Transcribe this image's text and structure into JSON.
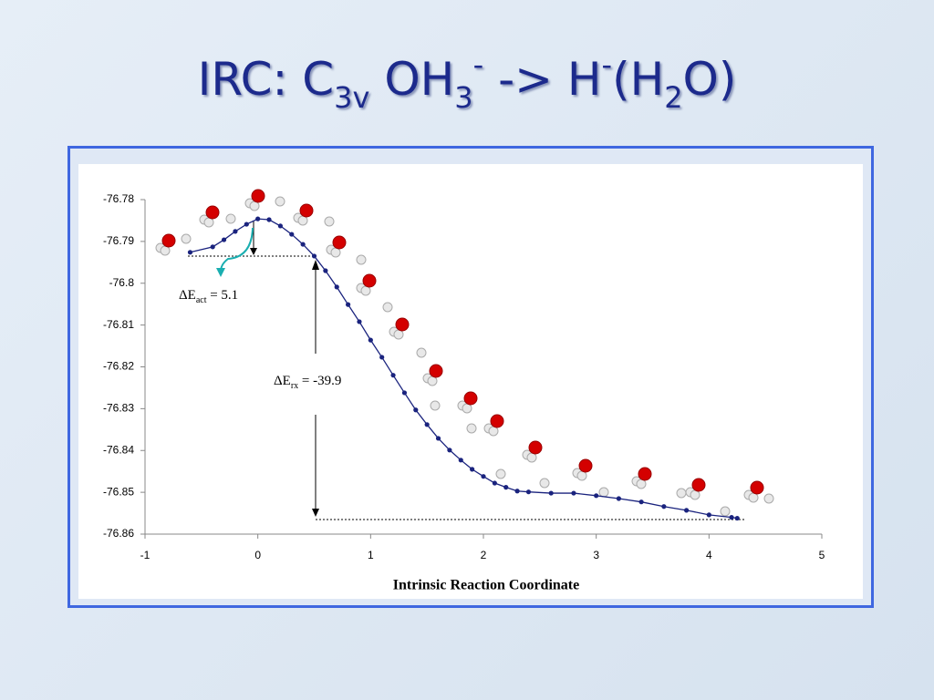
{
  "title_parts": [
    "IRC: C",
    "3v",
    " OH",
    "3",
    "-",
    " -> H",
    "-",
    "(H",
    "2",
    "O)"
  ],
  "chart_data": {
    "type": "line",
    "x_label": "Intrinsic Reaction Coordinate",
    "annotations": [
      [
        "ΔE",
        "act",
        " = 5.1"
      ],
      [
        "ΔE",
        "rx",
        " = -39.9"
      ]
    ],
    "x": [
      -0.6,
      -0.4,
      -0.3,
      -0.2,
      -0.1,
      0,
      0.1,
      0.2,
      0.3,
      0.4,
      0.5,
      0.6,
      0.7,
      0.8,
      0.9,
      1.0,
      1.1,
      1.2,
      1.3,
      1.4,
      1.5,
      1.6,
      1.7,
      1.8,
      1.9,
      2.0,
      2.1,
      2.2,
      2.3,
      2.4,
      2.6,
      2.8,
      3.0,
      3.2,
      3.4,
      3.6,
      3.8,
      4.0,
      4.2,
      4.25
    ],
    "values": [
      -76.7926,
      -76.7913,
      -76.7896,
      -76.7876,
      -76.7859,
      -76.7846,
      -76.7848,
      -76.7863,
      -76.7883,
      -76.7907,
      -76.7935,
      -76.797,
      -76.8009,
      -76.8051,
      -76.8092,
      -76.8136,
      -76.8177,
      -76.822,
      -76.8262,
      -76.8303,
      -76.8338,
      -76.8371,
      -76.8399,
      -76.8423,
      -76.8445,
      -76.8462,
      -76.8478,
      -76.8488,
      -76.8497,
      -76.8499,
      -76.8502,
      -76.8502,
      -76.8508,
      -76.8515,
      -76.8523,
      -76.8534,
      -76.8543,
      -76.8554,
      -76.856,
      -76.8562
    ],
    "color": "#1a237e",
    "xlim": [
      -1,
      5
    ],
    "xticks": [
      -1,
      0,
      1,
      2,
      3,
      4,
      5
    ],
    "ylim": [
      -76.86,
      -76.78
    ],
    "yticks": [
      -76.86,
      -76.85,
      -76.84,
      -76.83,
      -76.82,
      -76.81,
      -76.8,
      -76.79,
      -76.78
    ]
  }
}
